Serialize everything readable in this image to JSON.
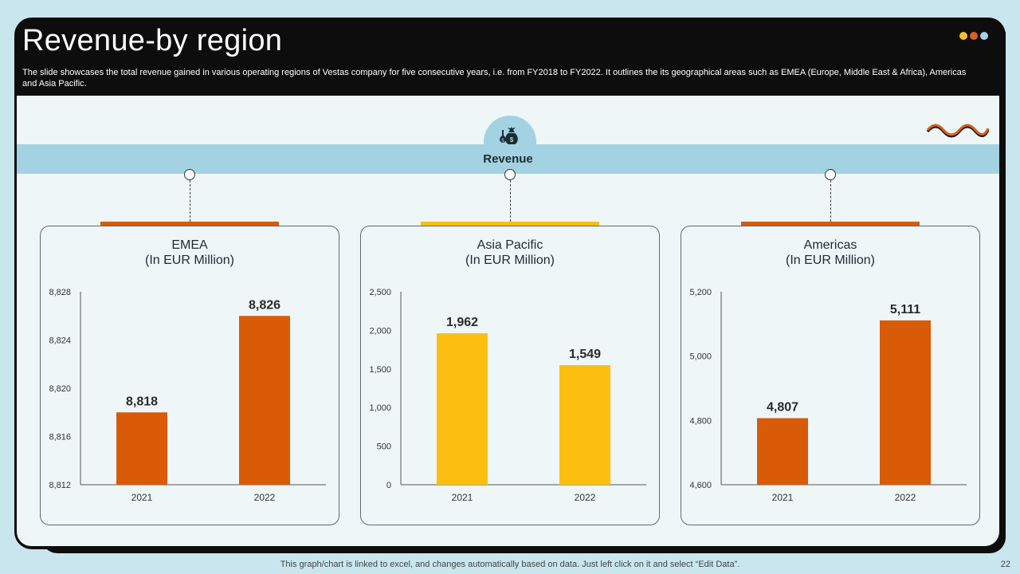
{
  "slide": {
    "title": "Revenue-by region",
    "description": "The slide showcases the total revenue gained in various operating regions of Vestas company for five  consecutive years, i.e. from FY2018 to FY2022.  It outlines the its geographical areas such as EMEA (Europe, Middle East & Africa),  Americas and Asia Pacific.",
    "banner_label": "Revenue",
    "footer_note": "This graph/chart is linked to excel,  and changes automatically based on data. Just left click on it and select “Edit Data”.",
    "page_number": "22"
  },
  "colors": {
    "dark_orange": "#d95b07",
    "yellow": "#fdbf0f",
    "light_blue": "#a3d3e2",
    "dot1": "#fbbf2d",
    "dot2": "#d9621a",
    "dot3": "#a3d3e2"
  },
  "chart_data": [
    {
      "type": "bar",
      "title_line1": "EMEA",
      "title_line2": "(In EUR Million)",
      "categories": [
        "2021",
        "2022"
      ],
      "values": [
        8818,
        8826
      ],
      "value_labels": [
        "8,818",
        "8,826"
      ],
      "ylim": [
        8812,
        8828
      ],
      "yticks": [
        8812,
        8816,
        8820,
        8824,
        8828
      ],
      "ytick_labels": [
        "8,812",
        "8,816",
        "8,820",
        "8,824",
        "8,828"
      ],
      "color": "#d95b07"
    },
    {
      "type": "bar",
      "title_line1": "Asia Pacific",
      "title_line2": "(In EUR Million)",
      "categories": [
        "2021",
        "2022"
      ],
      "values": [
        1962,
        1549
      ],
      "value_labels": [
        "1,962",
        "1,549"
      ],
      "ylim": [
        0,
        2500
      ],
      "yticks": [
        0,
        500,
        1000,
        1500,
        2000,
        2500
      ],
      "ytick_labels": [
        "0",
        "500",
        "1,000",
        "1,500",
        "2,000",
        "2,500"
      ],
      "color": "#fdbf0f"
    },
    {
      "type": "bar",
      "title_line1": "Americas",
      "title_line2": "(In EUR Million)",
      "categories": [
        "2021",
        "2022"
      ],
      "values": [
        4807,
        5111
      ],
      "value_labels": [
        "4,807",
        "5,111"
      ],
      "ylim": [
        4600,
        5200
      ],
      "yticks": [
        4600,
        4800,
        5000,
        5200
      ],
      "ytick_labels": [
        "4,600",
        "4,800",
        "5,000",
        "5,200"
      ],
      "color": "#d95b07"
    }
  ]
}
